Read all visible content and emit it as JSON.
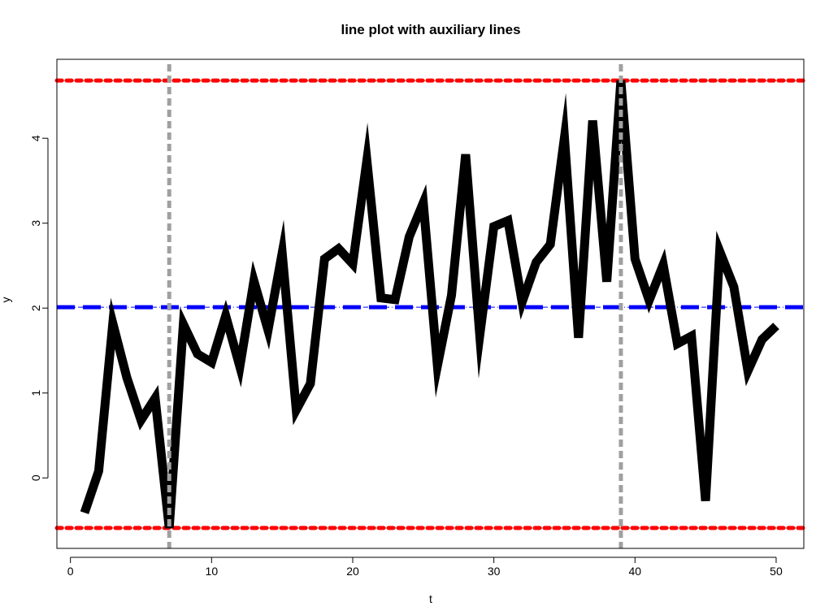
{
  "chart_data": {
    "type": "line",
    "title": "line plot with auxiliary lines",
    "xlabel": "t",
    "ylabel": "y",
    "xlim": [
      -0.96,
      51.96
    ],
    "ylim": [
      -0.83,
      4.93
    ],
    "x_ticks": [
      0,
      10,
      20,
      30,
      40,
      50
    ],
    "y_ticks": [
      0,
      1,
      2,
      3,
      4
    ],
    "grid": false,
    "legend": "none",
    "series": [
      {
        "color": "#000000",
        "x": [
          1,
          2,
          3,
          4,
          5,
          6,
          7,
          8,
          9,
          10,
          11,
          12,
          13,
          14,
          15,
          16,
          17,
          18,
          19,
          20,
          21,
          22,
          23,
          24,
          25,
          26,
          27,
          28,
          29,
          30,
          31,
          32,
          33,
          34,
          35,
          36,
          37,
          38,
          39,
          40,
          41,
          42,
          43,
          44,
          45,
          46,
          47,
          48,
          49,
          50
        ],
        "y": [
          -0.41,
          0.08,
          1.82,
          1.18,
          0.68,
          0.94,
          -0.59,
          1.81,
          1.46,
          1.36,
          1.91,
          1.31,
          2.32,
          1.74,
          2.65,
          0.8,
          1.11,
          2.58,
          2.7,
          2.52,
          3.74,
          2.12,
          2.1,
          2.84,
          3.24,
          1.32,
          2.15,
          3.81,
          1.68,
          2.96,
          3.03,
          2.07,
          2.54,
          2.75,
          4.01,
          1.65,
          4.21,
          2.31,
          4.68,
          2.58,
          2.09,
          2.51,
          1.58,
          1.67,
          -0.27,
          2.67,
          2.25,
          1.26,
          1.63,
          1.79
        ]
      }
    ],
    "reference_lines": [
      {
        "orientation": "horizontal",
        "value": 4.68,
        "color": "#ff0000",
        "style": "dotted"
      },
      {
        "orientation": "horizontal",
        "value": -0.59,
        "color": "#ff0000",
        "style": "dotted"
      },
      {
        "orientation": "horizontal",
        "value": 2.01,
        "color": "#0000ff",
        "style": "dashed"
      },
      {
        "orientation": "vertical",
        "value": 7,
        "color": "#a0a0a0",
        "style": "dashed"
      },
      {
        "orientation": "vertical",
        "value": 39,
        "color": "#a0a0a0",
        "style": "dashed"
      }
    ]
  }
}
